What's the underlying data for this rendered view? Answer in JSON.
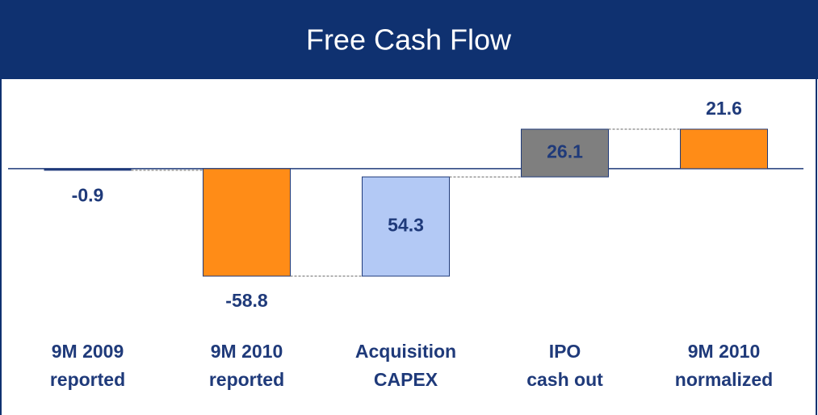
{
  "chart_data": {
    "type": "waterfall",
    "title": "Free Cash Flow",
    "categories": [
      "9M 2009\nreported",
      "9M 2010\nreported",
      "Acquisition\nCAPEX",
      "IPO\ncash out",
      "9M 2010\nnormalized"
    ],
    "values": [
      -0.9,
      -58.8,
      54.3,
      26.1,
      21.6
    ],
    "measures": [
      "total",
      "total",
      "relative",
      "relative",
      "total"
    ],
    "colors": [
      "#1f3a7a",
      "#ff8c17",
      "#b3c9f5",
      "#7f7f7f",
      "#ff8c17"
    ]
  }
}
